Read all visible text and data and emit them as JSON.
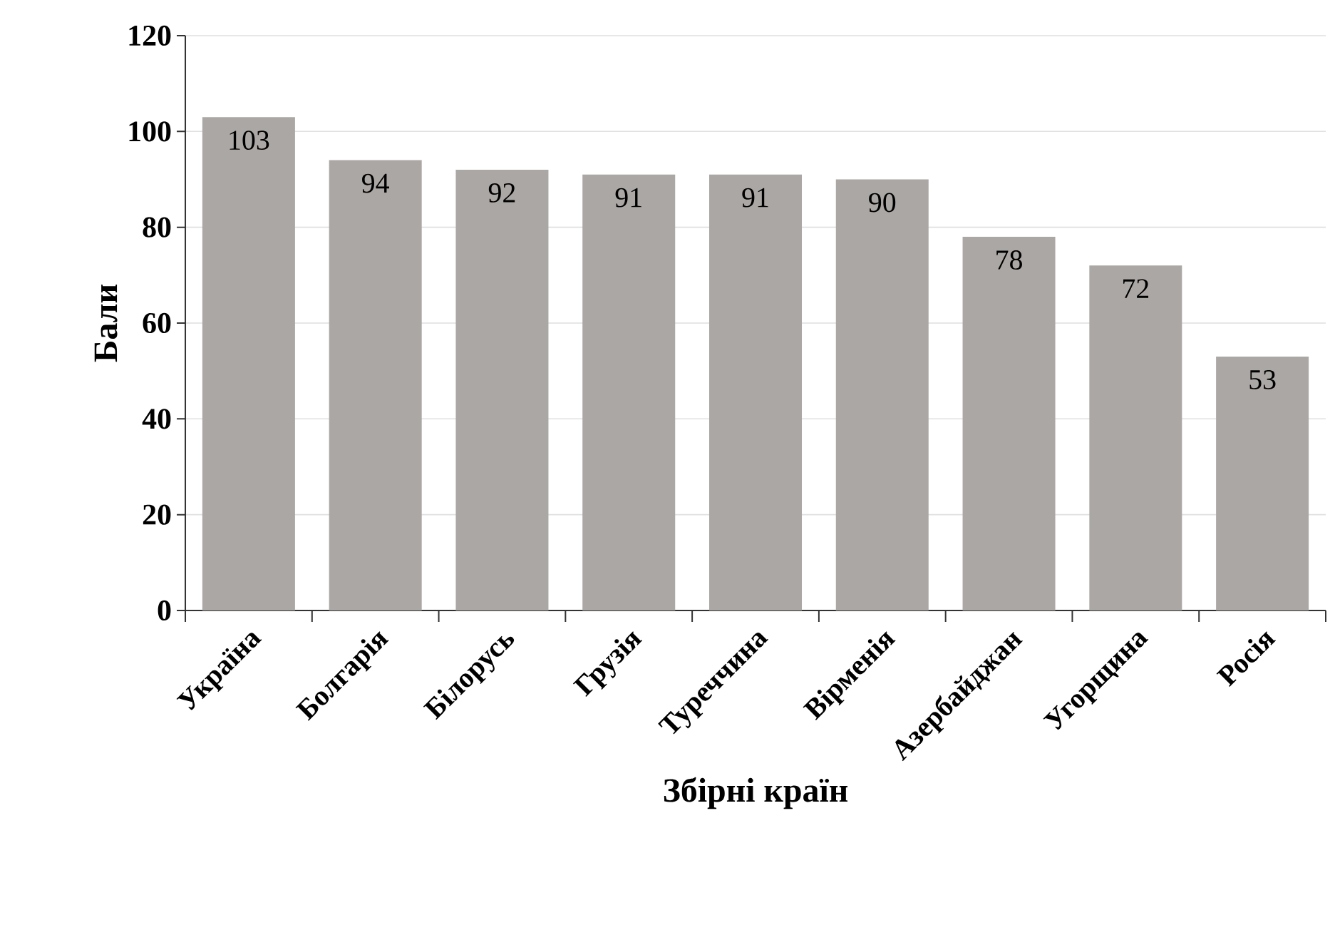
{
  "chart_data": {
    "type": "bar",
    "categories": [
      "Україна",
      "Болгарія",
      "Білорусь",
      "Грузія",
      "Туреччина",
      "Вірменія",
      "Азербайджан",
      "Угорщина",
      "Росія"
    ],
    "values": [
      103,
      94,
      92,
      91,
      91,
      90,
      78,
      72,
      53
    ],
    "color": "#aba7a5",
    "xlabel": "Збірні країн",
    "ylabel": "Бали",
    "ylim": [
      0,
      120
    ],
    "yticks": [
      0,
      20,
      40,
      60,
      80,
      100,
      120
    ],
    "grid": "y",
    "data_labels": true
  }
}
